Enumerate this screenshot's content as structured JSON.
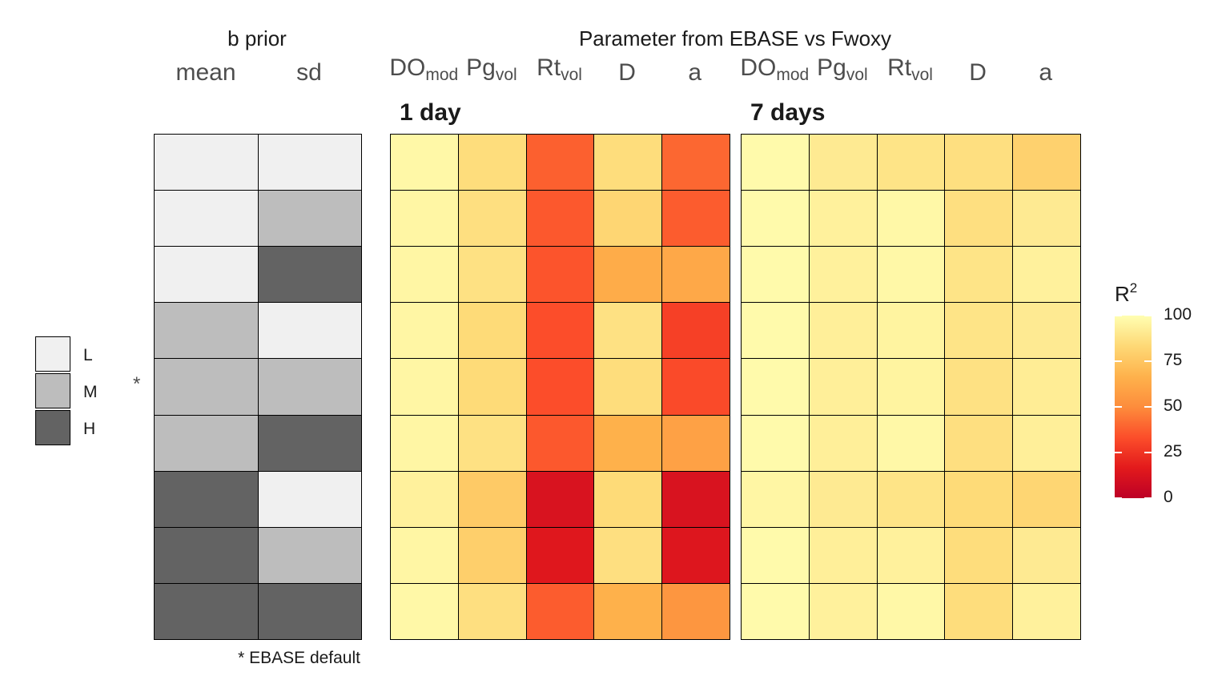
{
  "chart_data": {
    "type": "heatmap",
    "prior_header": "b prior",
    "prior_columns": [
      "mean",
      "sd"
    ],
    "prior_rows": [
      [
        "L",
        "L"
      ],
      [
        "L",
        "M"
      ],
      [
        "L",
        "H"
      ],
      [
        "M",
        "L"
      ],
      [
        "M",
        "M"
      ],
      [
        "M",
        "H"
      ],
      [
        "H",
        "L"
      ],
      [
        "H",
        "M"
      ],
      [
        "H",
        "H"
      ]
    ],
    "default_row_marker": "*",
    "default_row_index": 4,
    "footnote": "* EBASE default",
    "title": "Parameter from EBASE vs Fwoxy",
    "columns": [
      {
        "base": "DO",
        "sub": "mod"
      },
      {
        "base": "Pg",
        "sub": "vol"
      },
      {
        "base": "Rt",
        "sub": "vol"
      },
      {
        "base": "D",
        "sub": ""
      },
      {
        "base": "a",
        "sub": ""
      }
    ],
    "panels": [
      {
        "name": "1 day",
        "values": [
          [
            97,
            85,
            38,
            85,
            40
          ],
          [
            96,
            86,
            36,
            82,
            37
          ],
          [
            96,
            87,
            35,
            64,
            62
          ],
          [
            96,
            84,
            33,
            87,
            29
          ],
          [
            96,
            84,
            33,
            85,
            32
          ],
          [
            96,
            87,
            36,
            66,
            59
          ],
          [
            94,
            77,
            12,
            84,
            12
          ],
          [
            96,
            79,
            15,
            86,
            14
          ],
          [
            97,
            86,
            37,
            66,
            54
          ]
        ]
      },
      {
        "name": "7 days",
        "values": [
          [
            98,
            91,
            88,
            86,
            80
          ],
          [
            98,
            94,
            97,
            86,
            91
          ],
          [
            98,
            94,
            97,
            88,
            94
          ],
          [
            98,
            93,
            95,
            88,
            91
          ],
          [
            98,
            93,
            95,
            87,
            92
          ],
          [
            98,
            93,
            97,
            86,
            93
          ],
          [
            96,
            91,
            88,
            84,
            82
          ],
          [
            98,
            93,
            94,
            85,
            91
          ],
          [
            98,
            94,
            97,
            85,
            94
          ]
        ]
      }
    ],
    "legend_prior": {
      "levels": [
        "L",
        "M",
        "H"
      ],
      "colors": [
        "#f0f0f0",
        "#bdbdbd",
        "#636363"
      ]
    },
    "legend_scale": {
      "title_base": "R",
      "title_sup": "2",
      "min": 0,
      "max": 100,
      "ticks": [
        "100",
        "75",
        "50",
        "25",
        "0"
      ],
      "palette": [
        "#bd0026",
        "#e31a1c",
        "#fc4e2a",
        "#fd8d3c",
        "#feb24c",
        "#fed976",
        "#ffffb2"
      ]
    }
  }
}
